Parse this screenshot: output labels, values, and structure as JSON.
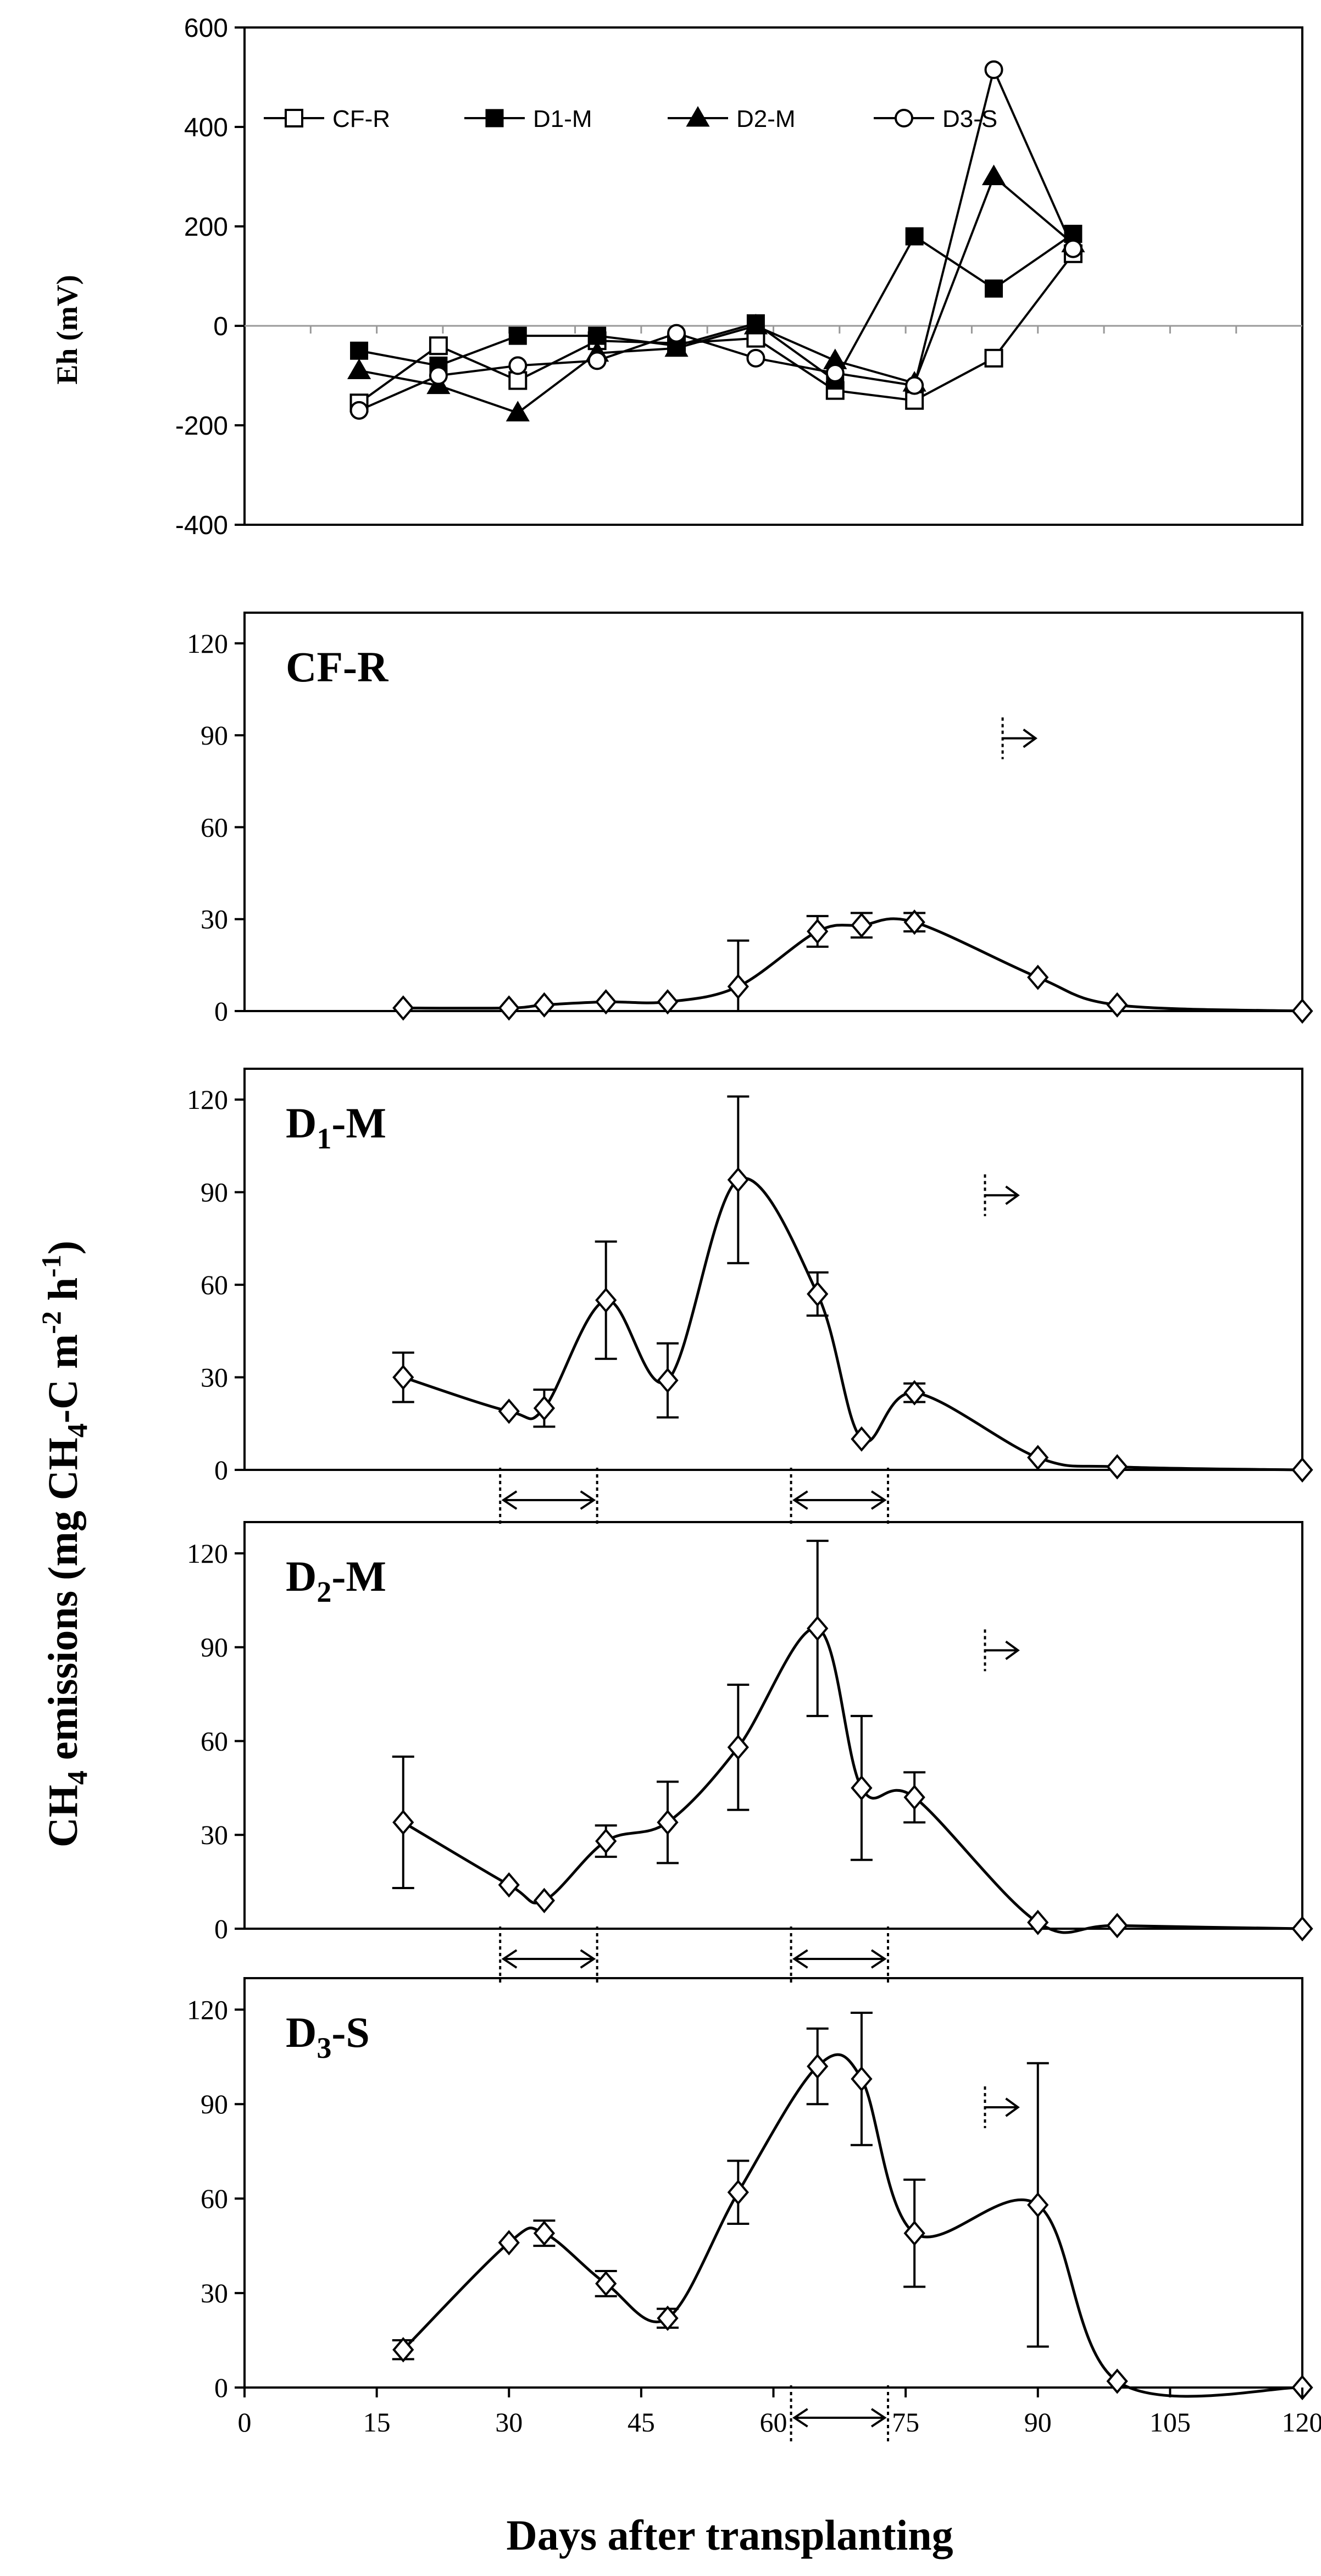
{
  "chart_data": [
    {
      "type": "line",
      "id": "eh",
      "title": "",
      "ylabel": "Eh (mV)",
      "xlim": [
        0,
        120
      ],
      "ylim": [
        -400,
        600
      ],
      "yticks": [
        "600",
        "400",
        "200",
        "0",
        "-200",
        "-400"
      ],
      "legend": {
        "placement": "top-left"
      },
      "series": [
        {
          "name": "CF-R",
          "marker": "square-open",
          "x": [
            13,
            22,
            31,
            40,
            49,
            58,
            67,
            76,
            85,
            94
          ],
          "y": [
            -155,
            -40,
            -110,
            -30,
            -35,
            -25,
            -130,
            -150,
            -65,
            145
          ]
        },
        {
          "name": "D1-M",
          "marker": "square-filled",
          "x": [
            13,
            22,
            31,
            40,
            49,
            58,
            67,
            76,
            85,
            94
          ],
          "y": [
            -50,
            -80,
            -20,
            -20,
            -40,
            5,
            -110,
            180,
            75,
            185
          ]
        },
        {
          "name": "D2-M",
          "marker": "triangle-filled",
          "x": [
            13,
            22,
            31,
            40,
            49,
            58,
            67,
            76,
            85,
            94
          ],
          "y": [
            -90,
            -120,
            -175,
            -55,
            -45,
            0,
            -70,
            -115,
            300,
            165
          ]
        },
        {
          "name": "D3-S",
          "marker": "circle-open",
          "x": [
            13,
            22,
            31,
            40,
            49,
            58,
            67,
            76,
            85,
            94
          ],
          "y": [
            -170,
            -100,
            -80,
            -70,
            -15,
            -65,
            -95,
            -120,
            515,
            155
          ]
        }
      ]
    },
    {
      "type": "line",
      "id": "cfr",
      "label": "CF-R",
      "xlim": [
        0,
        120
      ],
      "ylim": [
        0,
        120
      ],
      "yticks": [
        "120",
        "90",
        "60",
        "30",
        "0"
      ],
      "drainage_arrow_x": 86,
      "series": [
        {
          "name": "CF-R",
          "x": [
            18,
            30,
            34,
            41,
            48,
            56,
            65,
            70,
            76,
            90,
            99,
            120
          ],
          "y": [
            1,
            1,
            2,
            3,
            3,
            8,
            26,
            28,
            29,
            11,
            2,
            0
          ],
          "err": [
            0,
            0,
            0,
            0,
            0,
            15,
            5,
            4,
            3,
            0,
            0,
            0
          ]
        }
      ]
    },
    {
      "type": "line",
      "id": "d1m",
      "label": "D",
      "label_sub": "1",
      "label_suffix": "-M",
      "xlim": [
        0,
        120
      ],
      "ylim": [
        0,
        120
      ],
      "yticks": [
        "120",
        "90",
        "60",
        "30",
        "0"
      ],
      "drainage_arrow_x": 84,
      "drying_periods": [
        [
          29,
          40
        ],
        [
          62,
          73
        ]
      ],
      "series": [
        {
          "name": "D1-M",
          "x": [
            18,
            30,
            34,
            41,
            48,
            56,
            65,
            70,
            76,
            90,
            99,
            120
          ],
          "y": [
            30,
            19,
            20,
            55,
            29,
            94,
            57,
            10,
            25,
            4,
            1,
            0
          ],
          "err": [
            8,
            0,
            6,
            19,
            12,
            27,
            7,
            0,
            3,
            0,
            0,
            0
          ]
        }
      ]
    },
    {
      "type": "line",
      "id": "d2m",
      "label": "D",
      "label_sub": "2",
      "label_suffix": "-M",
      "xlim": [
        0,
        120
      ],
      "ylim": [
        0,
        120
      ],
      "yticks": [
        "120",
        "90",
        "60",
        "30",
        "0"
      ],
      "drainage_arrow_x": 84,
      "drying_periods": [
        [
          29,
          40
        ],
        [
          62,
          73
        ]
      ],
      "series": [
        {
          "name": "D2-M",
          "x": [
            18,
            30,
            34,
            41,
            48,
            56,
            65,
            70,
            76,
            90,
            99,
            120
          ],
          "y": [
            34,
            14,
            9,
            28,
            34,
            58,
            96,
            45,
            42,
            2,
            1,
            0
          ],
          "err": [
            21,
            0,
            0,
            5,
            13,
            20,
            28,
            23,
            8,
            0,
            0,
            0
          ]
        }
      ]
    },
    {
      "type": "line",
      "id": "d3s",
      "label": "D",
      "label_sub": "3",
      "label_suffix": "-S",
      "xlim": [
        0,
        120
      ],
      "ylim": [
        0,
        120
      ],
      "yticks": [
        "120",
        "90",
        "60",
        "30",
        "0"
      ],
      "xticks": [
        "0",
        "15",
        "30",
        "45",
        "60",
        "75",
        "90",
        "105",
        "120"
      ],
      "xlabel": "Days after transplanting",
      "drainage_arrow_x": 84,
      "drying_periods": [
        [
          62,
          73
        ]
      ],
      "series": [
        {
          "name": "D3-S",
          "x": [
            18,
            30,
            34,
            41,
            48,
            56,
            65,
            70,
            76,
            90,
            99,
            120
          ],
          "y": [
            12,
            46,
            49,
            33,
            22,
            62,
            102,
            98,
            49,
            58,
            2,
            0
          ],
          "err": [
            3,
            0,
            4,
            4,
            3,
            10,
            12,
            21,
            17,
            45,
            0,
            0
          ]
        }
      ]
    }
  ],
  "shared_ylabel": {
    "main": "CH",
    "sub1": "4",
    "mid": " emissions (mg CH",
    "sub2": "4",
    "mid2": "-C m",
    "sup1": "-2",
    "mid3": " h",
    "sup2": "-1",
    "end": ")"
  }
}
